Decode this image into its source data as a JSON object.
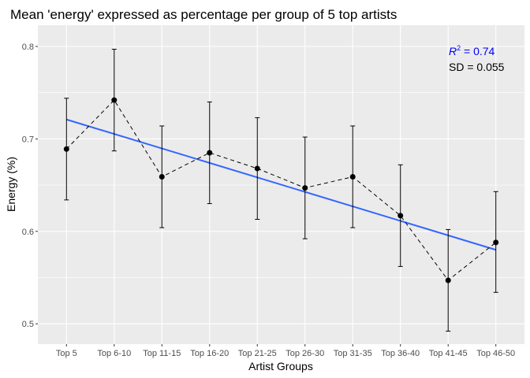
{
  "chart_data": {
    "type": "line",
    "title": "Mean 'energy' expressed as percentage per group of 5 top artists",
    "xlabel": "Artist Groups",
    "ylabel": "Energy (%)",
    "categories": [
      "Top 5",
      "Top 6-10",
      "Top 11-15",
      "Top 16-20",
      "Top 21-25",
      "Top 26-30",
      "Top 31-35",
      "Top 36-40",
      "Top 41-45",
      "Top 46-50"
    ],
    "ylim": [
      0.478,
      0.823
    ],
    "yticks": [
      0.5,
      0.6,
      0.7,
      0.8
    ],
    "ytick_labels": [
      "0.5",
      "0.6",
      "0.7",
      "0.8"
    ],
    "grid": true,
    "series": [
      {
        "values": [
          0.689,
          0.742,
          0.659,
          0.685,
          0.668,
          0.647,
          0.659,
          0.617,
          0.547,
          0.588
        ],
        "error_low": [
          0.634,
          0.687,
          0.604,
          0.63,
          0.613,
          0.592,
          0.604,
          0.562,
          0.492,
          0.534
        ],
        "error_high": [
          0.744,
          0.797,
          0.714,
          0.74,
          0.723,
          0.702,
          0.714,
          0.672,
          0.602,
          0.643
        ],
        "line_style": "dashed",
        "color": "#000000"
      }
    ],
    "trend_line": {
      "start": 0.721,
      "end": 0.58,
      "color": "#3366ff"
    },
    "annotations": {
      "r2_label_symbol": "R",
      "r2_label_sup": "2",
      "r2_label_value": " = 0.74",
      "r2_color": "#0000ff",
      "sd_label": "SD = 0.055",
      "sd_color": "#000000"
    },
    "colors": {
      "panel_background": "#ebebeb",
      "grid": "#ffffff"
    }
  }
}
